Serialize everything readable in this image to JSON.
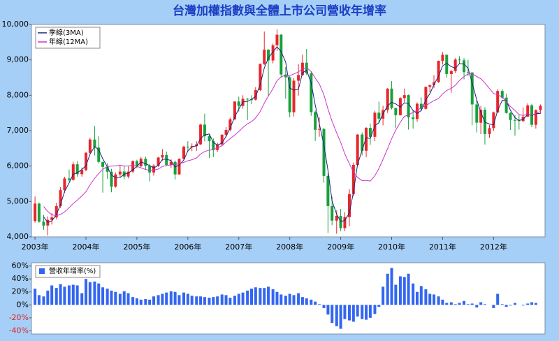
{
  "chart_data": [
    {
      "type": "candlestick",
      "title": "台灣加權指數與全體上市公司營收年增率",
      "x": [
        2003,
        2003.08,
        2003.17,
        2003.25,
        2003.33,
        2003.42,
        2003.5,
        2003.58,
        2003.67,
        2003.75,
        2003.83,
        2003.92,
        2004,
        2004.08,
        2004.17,
        2004.25,
        2004.33,
        2004.42,
        2004.5,
        2004.58,
        2004.67,
        2004.75,
        2004.83,
        2004.92,
        2005,
        2005.08,
        2005.17,
        2005.25,
        2005.33,
        2005.42,
        2005.5,
        2005.58,
        2005.67,
        2005.75,
        2005.83,
        2005.92,
        2006,
        2006.08,
        2006.17,
        2006.25,
        2006.33,
        2006.42,
        2006.5,
        2006.58,
        2006.67,
        2006.75,
        2006.83,
        2006.92,
        2007,
        2007.08,
        2007.17,
        2007.25,
        2007.33,
        2007.42,
        2007.5,
        2007.58,
        2007.67,
        2007.75,
        2007.83,
        2007.92,
        2008,
        2008.08,
        2008.17,
        2008.25,
        2008.33,
        2008.42,
        2008.5,
        2008.58,
        2008.67,
        2008.75,
        2008.83,
        2008.92,
        2009,
        2009.08,
        2009.17,
        2009.25,
        2009.33,
        2009.42,
        2009.5,
        2009.58,
        2009.67,
        2009.75,
        2009.83,
        2009.92,
        2010,
        2010.08,
        2010.17,
        2010.25,
        2010.33,
        2010.42,
        2010.5,
        2010.58,
        2010.67,
        2010.75,
        2010.83,
        2010.92,
        2011,
        2011.08,
        2011.17,
        2011.25,
        2011.33,
        2011.42,
        2011.5,
        2011.58,
        2011.67,
        2011.75,
        2011.83,
        2011.92,
        2012,
        2012.08,
        2012.17,
        2012.25,
        2012.33,
        2012.42,
        2012.5,
        2012.58,
        2012.67,
        2012.75,
        2012.83,
        2012.92
      ],
      "open": [
        4450,
        4940,
        4430,
        4320,
        4480,
        4550,
        4870,
        5320,
        5650,
        5610,
        6050,
        5770,
        5890,
        6375,
        6750,
        6522,
        6117,
        5977,
        5840,
        5420,
        5765,
        5845,
        5705,
        5844,
        6140,
        5994,
        6208,
        6005,
        5819,
        6011,
        6242,
        6312,
        6033,
        6118,
        5764,
        6203,
        6548,
        6532,
        6561,
        6614,
        7171,
        6847,
        6704,
        6454,
        6611,
        6884,
        7022,
        7322,
        7823,
        7699,
        7901,
        7884,
        7875,
        8145,
        8883,
        9287,
        8983,
        9411,
        9711,
        8586,
        8506,
        7521,
        8412,
        8572,
        8920,
        8619,
        7524,
        7024,
        7046,
        5719,
        4870,
        4460,
        4591,
        4248,
        4557,
        5210,
        6033,
        6890,
        6432,
        7078,
        6826,
        7509,
        7340,
        7582,
        8188,
        7640,
        7436,
        7920,
        8004,
        7374,
        7329,
        7760,
        7616,
        8237,
        8287,
        8372,
        8973,
        9145,
        8600,
        8683,
        9008,
        8988,
        8653,
        8644,
        7741,
        7225,
        7588,
        6904,
        7072,
        7517,
        8121,
        7933,
        7501,
        7301,
        7296,
        7270,
        7397,
        7715,
        7166,
        7580
      ],
      "high": [
        5140,
        4970,
        4620,
        4580,
        4670,
        4960,
        5400,
        5700,
        5900,
        6120,
        6140,
        5960,
        6400,
        6800,
        7135,
        6840,
        6120,
        6080,
        5920,
        5820,
        6010,
        5990,
        5990,
        6160,
        6180,
        6260,
        6270,
        6060,
        6050,
        6260,
        6480,
        6410,
        6200,
        6160,
        6220,
        6580,
        6700,
        6640,
        6700,
        7200,
        7480,
        6900,
        6780,
        6660,
        6900,
        7100,
        7370,
        7830,
        7960,
        8000,
        7920,
        8000,
        8230,
        8900,
        9800,
        9300,
        9460,
        9860,
        9730,
        8800,
        8540,
        8480,
        8880,
        9150,
        9310,
        8680,
        7580,
        7380,
        7080,
        5800,
        5130,
        4750,
        4790,
        4700,
        5350,
        6100,
        6900,
        6950,
        7100,
        7200,
        7560,
        7820,
        7700,
        8200,
        8400,
        7650,
        7950,
        8190,
        8020,
        7580,
        7800,
        7940,
        8250,
        8300,
        8570,
        8980,
        9220,
        9150,
        8720,
        9050,
        9100,
        9050,
        9000,
        8650,
        7870,
        7700,
        7660,
        7160,
        7540,
        8170,
        8170,
        8040,
        7520,
        7450,
        7440,
        7660,
        7770,
        7760,
        7600,
        7740
      ],
      "low": [
        4400,
        4400,
        4200,
        4040,
        4350,
        4500,
        4820,
        5240,
        5560,
        5590,
        5700,
        5700,
        5850,
        6330,
        6300,
        6080,
        5250,
        5640,
        5260,
        5390,
        5700,
        5630,
        5650,
        5800,
        5940,
        5960,
        5900,
        5570,
        5730,
        5980,
        6150,
        6000,
        5950,
        5620,
        5760,
        6170,
        6400,
        6420,
        6430,
        6590,
        6700,
        6230,
        6250,
        6400,
        6570,
        6820,
        6980,
        7300,
        7540,
        7620,
        7300,
        7750,
        7850,
        8120,
        8850,
        7980,
        8900,
        9250,
        8500,
        7900,
        7380,
        7400,
        7990,
        8550,
        8580,
        7420,
        6710,
        6830,
        5530,
        4110,
        4330,
        4090,
        4160,
        4160,
        4300,
        5150,
        6000,
        6300,
        6250,
        6600,
        6700,
        7200,
        7150,
        7500,
        7600,
        7080,
        7430,
        7800,
        7030,
        7060,
        7250,
        7550,
        7600,
        8080,
        8200,
        8350,
        8870,
        8500,
        8070,
        8630,
        8880,
        8450,
        8550,
        7150,
        6950,
        6900,
        6610,
        6800,
        6990,
        7500,
        7900,
        7480,
        7020,
        6860,
        7030,
        7250,
        7380,
        7100,
        7060,
        7480
      ],
      "close": [
        4940,
        4430,
        4320,
        4480,
        4550,
        4870,
        5320,
        5650,
        5610,
        6050,
        5770,
        5890,
        6375,
        6750,
        6522,
        6117,
        5977,
        5840,
        5420,
        5765,
        5845,
        5705,
        5844,
        6140,
        5994,
        6208,
        6005,
        5819,
        6011,
        6242,
        6312,
        6033,
        6118,
        5764,
        6203,
        6548,
        6532,
        6561,
        6614,
        7171,
        6847,
        6704,
        6454,
        6611,
        6884,
        7022,
        7322,
        7823,
        7699,
        7901,
        7884,
        7875,
        8145,
        8883,
        9287,
        8983,
        9411,
        9711,
        8586,
        8506,
        7521,
        8412,
        8572,
        8920,
        8619,
        7524,
        7024,
        7046,
        5719,
        4870,
        4460,
        4591,
        4248,
        4557,
        5210,
        6033,
        6890,
        6432,
        7078,
        6826,
        7509,
        7340,
        7582,
        8188,
        7640,
        7436,
        7920,
        8004,
        7374,
        7329,
        7760,
        7616,
        8237,
        8287,
        8372,
        8973,
        9145,
        8600,
        8683,
        9008,
        8988,
        8653,
        8644,
        7741,
        7225,
        7588,
        6904,
        7072,
        7517,
        8121,
        7933,
        7501,
        7301,
        7296,
        7270,
        7397,
        7715,
        7166,
        7580,
        7699
      ],
      "up_color": "#e8262b",
      "down_color": "#18a03c",
      "series": [
        {
          "name": "季線(3MA)",
          "color": "#1a237e",
          "values": [
            null,
            null,
            4563,
            4410,
            4450,
            4633,
            4913,
            5280,
            5527,
            5770,
            5810,
            5903,
            6012,
            6338,
            6549,
            6463,
            6205,
            5978,
            5746,
            5675,
            5677,
            5772,
            5798,
            5896,
            5993,
            6114,
            6069,
            6011,
            5945,
            6024,
            6188,
            6196,
            6154,
            5972,
            6028,
            6172,
            6428,
            6547,
            6569,
            6782,
            6877,
            6907,
            6668,
            6590,
            6650,
            6839,
            7076,
            7389,
            7615,
            7808,
            7828,
            7887,
            7968,
            8301,
            8772,
            9051,
            9227,
            9368,
            9236,
            8934,
            8204,
            8146,
            8168,
            8635,
            8704,
            8354,
            7722,
            7198,
            6596,
            5878,
            5016,
            4640,
            4433,
            4465,
            4672,
            5267,
            6044,
            6452,
            6800,
            6779,
            7138,
            7225,
            7477,
            7703,
            7803,
            7755,
            7665,
            7787,
            7766,
            7569,
            7488,
            7568,
            7871,
            8047,
            8299,
            8544,
            8830,
            8906,
            8809,
            8764,
            8893,
            8883,
            8762,
            8346,
            7870,
            7518,
            7239,
            7188,
            7164,
            7570,
            7857,
            7852,
            7578,
            7366,
            7289,
            7321,
            7461,
            7426,
            7487,
            7482
          ]
        },
        {
          "name": "年線(12MA)",
          "color": "#cc33cc",
          "values": [
            null,
            null,
            4856,
            4717,
            4623,
            4600,
            4631,
            4705,
            4823,
            4946,
            5037,
            5157,
            5276,
            5470,
            5653,
            5790,
            5908,
            5989,
            5998,
            6007,
            6027,
            5998,
            6004,
            6025,
            5993,
            5948,
            5905,
            5880,
            5883,
            5917,
            5991,
            6013,
            6036,
            6041,
            6071,
            6105,
            6150,
            6179,
            6230,
            6342,
            6412,
            6451,
            6462,
            6511,
            6574,
            6679,
            6773,
            6879,
            6976,
            7088,
            7194,
            7252,
            7360,
            7542,
            7778,
            7976,
            8186,
            8410,
            8516,
            8573,
            8558,
            8600,
            8658,
            8745,
            8784,
            8671,
            8482,
            8321,
            8013,
            7610,
            7266,
            6940,
            6667,
            6346,
            6066,
            5825,
            5681,
            5590,
            5595,
            5576,
            5725,
            5931,
            6191,
            6491,
            6774,
            7014,
            7240,
            7404,
            7444,
            7519,
            7576,
            7642,
            7702,
            7781,
            7847,
            7912,
            8038,
            8135,
            8198,
            8282,
            8417,
            8527,
            8601,
            8611,
            8527,
            8468,
            8346,
            8188,
            8052,
            8012,
            7950,
            7824,
            7683,
            7570,
            7456,
            7427,
            7468,
            7433,
            7489,
            7541
          ]
        }
      ],
      "legend": "upper left",
      "xlim": [
        2002.93,
        2013.01
      ],
      "xticks": [
        {
          "value": 2003,
          "label": "2003年"
        },
        {
          "value": 2004,
          "label": "2004年"
        },
        {
          "value": 2005,
          "label": "2005年"
        },
        {
          "value": 2006,
          "label": "2006年"
        },
        {
          "value": 2007,
          "label": "2007年"
        },
        {
          "value": 2008,
          "label": "2008年"
        },
        {
          "value": 2009,
          "label": "2009年"
        },
        {
          "value": 2010,
          "label": "2010年"
        },
        {
          "value": 2011,
          "label": "2011年"
        },
        {
          "value": 2012,
          "label": "2012年"
        }
      ],
      "ylim": [
        4000,
        10000
      ],
      "yticks": [
        {
          "value": 4000,
          "label": "4,000"
        },
        {
          "value": 5000,
          "label": "5,000"
        },
        {
          "value": 6000,
          "label": "6,000"
        },
        {
          "value": 7000,
          "label": "7,000"
        },
        {
          "value": 8000,
          "label": "8,000"
        },
        {
          "value": 9000,
          "label": "9,000"
        },
        {
          "value": 10000,
          "label": "10,000"
        }
      ]
    },
    {
      "type": "bar",
      "x": [
        2003,
        2003.08,
        2003.17,
        2003.25,
        2003.33,
        2003.42,
        2003.5,
        2003.58,
        2003.67,
        2003.75,
        2003.83,
        2003.92,
        2004,
        2004.08,
        2004.17,
        2004.25,
        2004.33,
        2004.42,
        2004.5,
        2004.58,
        2004.67,
        2004.75,
        2004.83,
        2004.92,
        2005,
        2005.08,
        2005.17,
        2005.25,
        2005.33,
        2005.42,
        2005.5,
        2005.58,
        2005.67,
        2005.75,
        2005.83,
        2005.92,
        2006,
        2006.08,
        2006.17,
        2006.25,
        2006.33,
        2006.42,
        2006.5,
        2006.58,
        2006.67,
        2006.75,
        2006.83,
        2006.92,
        2007,
        2007.08,
        2007.17,
        2007.25,
        2007.33,
        2007.42,
        2007.5,
        2007.58,
        2007.67,
        2007.75,
        2007.83,
        2007.92,
        2008,
        2008.08,
        2008.17,
        2008.25,
        2008.33,
        2008.42,
        2008.5,
        2008.58,
        2008.67,
        2008.75,
        2008.83,
        2008.92,
        2009,
        2009.08,
        2009.17,
        2009.25,
        2009.33,
        2009.42,
        2009.5,
        2009.58,
        2009.67,
        2009.75,
        2009.83,
        2009.92,
        2010,
        2010.08,
        2010.17,
        2010.25,
        2010.33,
        2010.42,
        2010.5,
        2010.58,
        2010.67,
        2010.75,
        2010.83,
        2010.92,
        2011,
        2011.08,
        2011.17,
        2011.25,
        2011.33,
        2011.42,
        2011.5,
        2011.58,
        2011.67,
        2011.75,
        2011.83,
        2011.92,
        2012,
        2012.08,
        2012.17,
        2012.25,
        2012.33,
        2012.42,
        2012.5,
        2012.58,
        2012.67,
        2012.75,
        2012.83,
        2012.92
      ],
      "series": [
        {
          "name": "營收年增率(%)",
          "color": "#3366f0",
          "values": [
            25,
            15,
            13,
            22,
            30,
            26,
            32,
            28,
            30,
            31,
            30,
            18,
            40,
            35,
            36,
            33,
            27,
            25,
            22,
            20,
            17,
            21,
            18,
            12,
            10,
            8,
            9,
            8,
            13,
            15,
            17,
            19,
            21,
            20,
            15,
            19,
            17,
            14,
            13,
            13,
            12,
            11,
            12,
            13,
            16,
            15,
            11,
            14,
            17,
            19,
            22,
            25,
            27,
            26,
            26,
            28,
            24,
            20,
            16,
            14,
            17,
            15,
            18,
            12,
            10,
            8,
            5,
            1,
            -5,
            -15,
            -28,
            -33,
            -37,
            -22,
            -24,
            -26,
            -18,
            -22,
            -23,
            -20,
            -14,
            -3,
            28,
            48,
            57,
            31,
            44,
            43,
            48,
            33,
            20,
            29,
            24,
            17,
            16,
            13,
            8,
            3,
            4,
            1,
            3,
            6,
            1,
            2,
            -4,
            4,
            1,
            0,
            -5,
            17,
            1,
            -3,
            -1,
            3,
            0,
            -1,
            2,
            4,
            3,
            0
          ]
        }
      ],
      "legend": "upper left",
      "xlim": [
        2002.93,
        2013.01
      ],
      "ylim": [
        -45,
        65
      ],
      "yticks": [
        {
          "value": -40,
          "label": "-40%"
        },
        {
          "value": -20,
          "label": "-20%"
        },
        {
          "value": 0,
          "label": "0%"
        },
        {
          "value": 20,
          "label": "20%"
        },
        {
          "value": 40,
          "label": "40%"
        },
        {
          "value": 60,
          "label": "60%"
        }
      ]
    }
  ]
}
